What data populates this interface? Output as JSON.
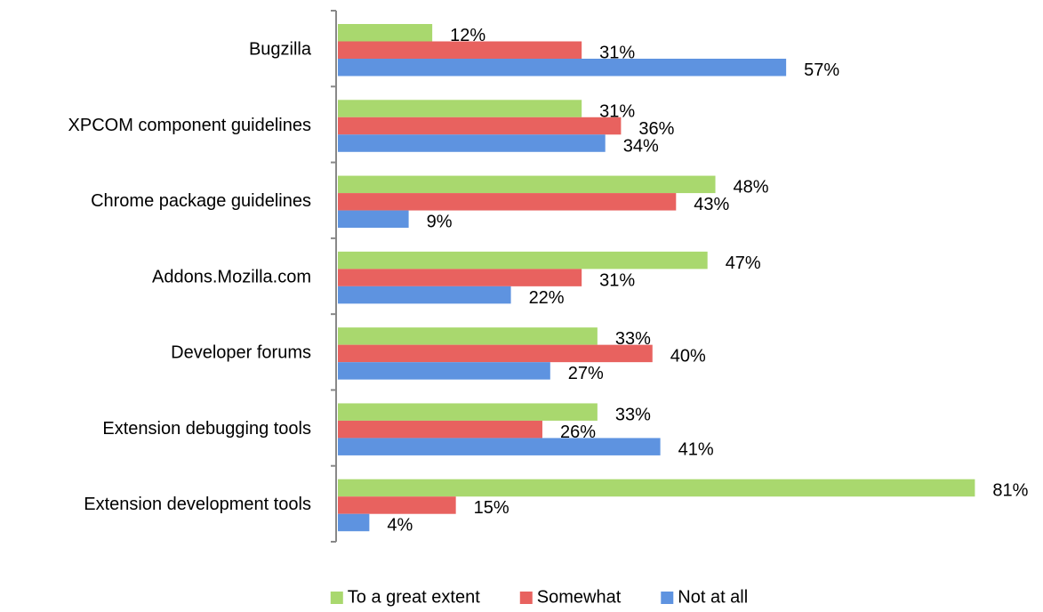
{
  "chart_data": {
    "type": "hbar",
    "categories": [
      "Bugzilla",
      "XPCOM component guidelines",
      "Chrome package guidelines",
      "Addons.Mozilla.com",
      "Developer forums",
      "Extension debugging tools",
      "Extension development tools"
    ],
    "series": [
      {
        "name": "To a great extent",
        "color": "#a9d86e",
        "values": [
          12,
          31,
          48,
          47,
          33,
          33,
          81
        ],
        "value_labels": [
          "12%",
          "31%",
          "48%",
          "47%",
          "33%",
          "33%",
          "81%"
        ]
      },
      {
        "name": "Somewhat",
        "color": "#e8625f",
        "values": [
          31,
          36,
          43,
          31,
          40,
          26,
          15
        ],
        "value_labels": [
          "31%",
          "36%",
          "43%",
          "31%",
          "40%",
          "26%",
          "15%"
        ]
      },
      {
        "name": "Not at all",
        "color": "#5e93e0",
        "values": [
          57,
          34,
          9,
          22,
          27,
          41,
          4
        ],
        "value_labels": [
          "57%",
          "34%",
          "9%",
          "22%",
          "27%",
          "41%",
          "4%"
        ]
      }
    ],
    "xlim": [
      0,
      90
    ],
    "legend": "bottom"
  }
}
